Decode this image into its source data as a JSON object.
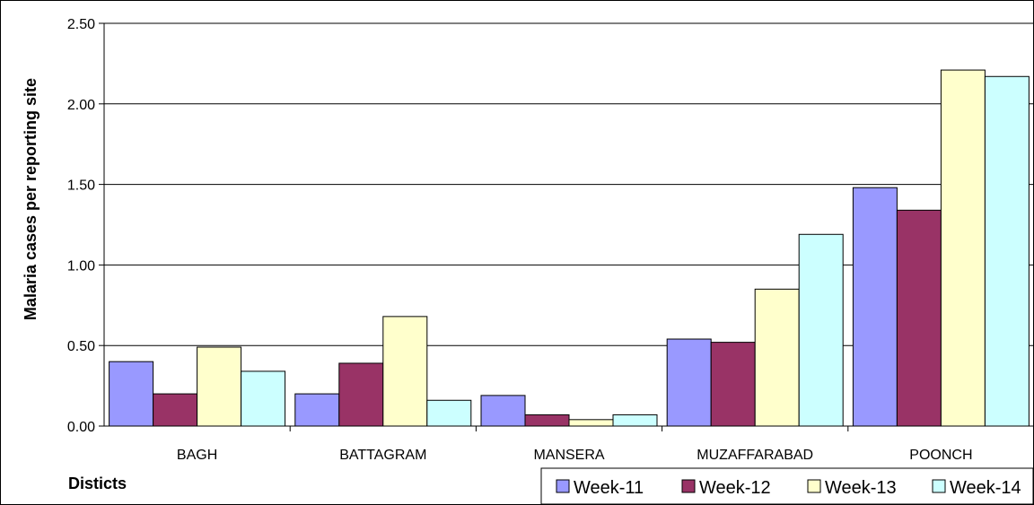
{
  "chart_data": {
    "type": "bar",
    "categories": [
      "BAGH",
      "BATTAGRAM",
      "MANSERA",
      "MUZAFFARABAD",
      "POONCH"
    ],
    "series": [
      {
        "name": "Week-11",
        "color": "#9999FF",
        "values": [
          0.4,
          0.2,
          0.19,
          0.54,
          1.48
        ]
      },
      {
        "name": "Week-12",
        "color": "#993366",
        "values": [
          0.2,
          0.39,
          0.07,
          0.52,
          1.34
        ]
      },
      {
        "name": "Week-13",
        "color": "#FFFFCC",
        "values": [
          0.49,
          0.68,
          0.04,
          0.85,
          2.21
        ]
      },
      {
        "name": "Week-14",
        "color": "#CCFFFF",
        "values": [
          0.34,
          0.16,
          0.07,
          1.19,
          2.17
        ]
      }
    ],
    "yticks": [
      "0.00",
      "0.50",
      "1.00",
      "1.50",
      "2.00",
      "2.50"
    ],
    "ylim": [
      0,
      2.5
    ],
    "xlabel": "Disticts",
    "ylabel": "Malaria cases per reporting site",
    "grid": true,
    "legend_position": "bottom-right"
  }
}
